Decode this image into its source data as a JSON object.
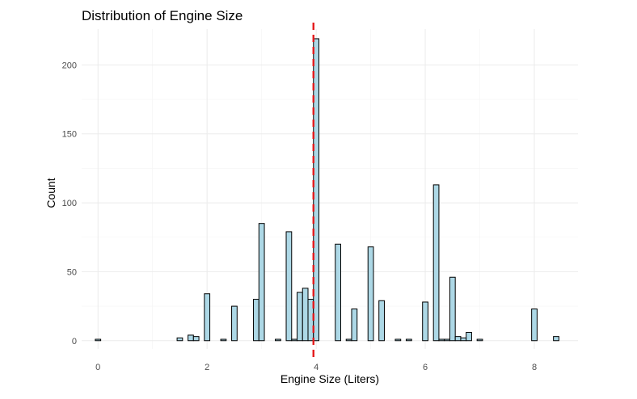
{
  "chart_data": {
    "type": "bar",
    "title": "Distribution of Engine Size",
    "xlabel": "Engine Size (Liters)",
    "ylabel": "Count",
    "xlim": [
      -0.3,
      8.8
    ],
    "ylim": [
      -6,
      226
    ],
    "x_ticks": [
      0,
      2,
      4,
      6,
      8
    ],
    "y_ticks": [
      0,
      50,
      100,
      150,
      200
    ],
    "grid": true,
    "bin_width": 0.1,
    "bar_fill": "#add8e6",
    "bar_stroke": "#000000",
    "mean_line": {
      "x": 3.95,
      "color": "#e41a1c",
      "style": "dashed"
    },
    "series": [
      {
        "x": [
          0.0,
          1.5,
          1.7,
          1.8,
          2.0,
          2.3,
          2.5,
          2.9,
          3.0,
          3.3,
          3.5,
          3.6,
          3.7,
          3.8,
          3.9,
          4.0,
          4.4,
          4.6,
          4.7,
          5.0,
          5.2,
          5.5,
          5.7,
          6.0,
          6.2,
          6.3,
          6.4,
          6.5,
          6.6,
          6.7,
          6.8,
          7.0,
          8.0,
          8.4
        ],
        "values": [
          1,
          2,
          4,
          3,
          34,
          1,
          25,
          30,
          85,
          1,
          79,
          1,
          35,
          38,
          30,
          219,
          70,
          1,
          23,
          68,
          29,
          1,
          1,
          28,
          113,
          1,
          1,
          46,
          3,
          2,
          6,
          1,
          23,
          3
        ]
      }
    ]
  }
}
